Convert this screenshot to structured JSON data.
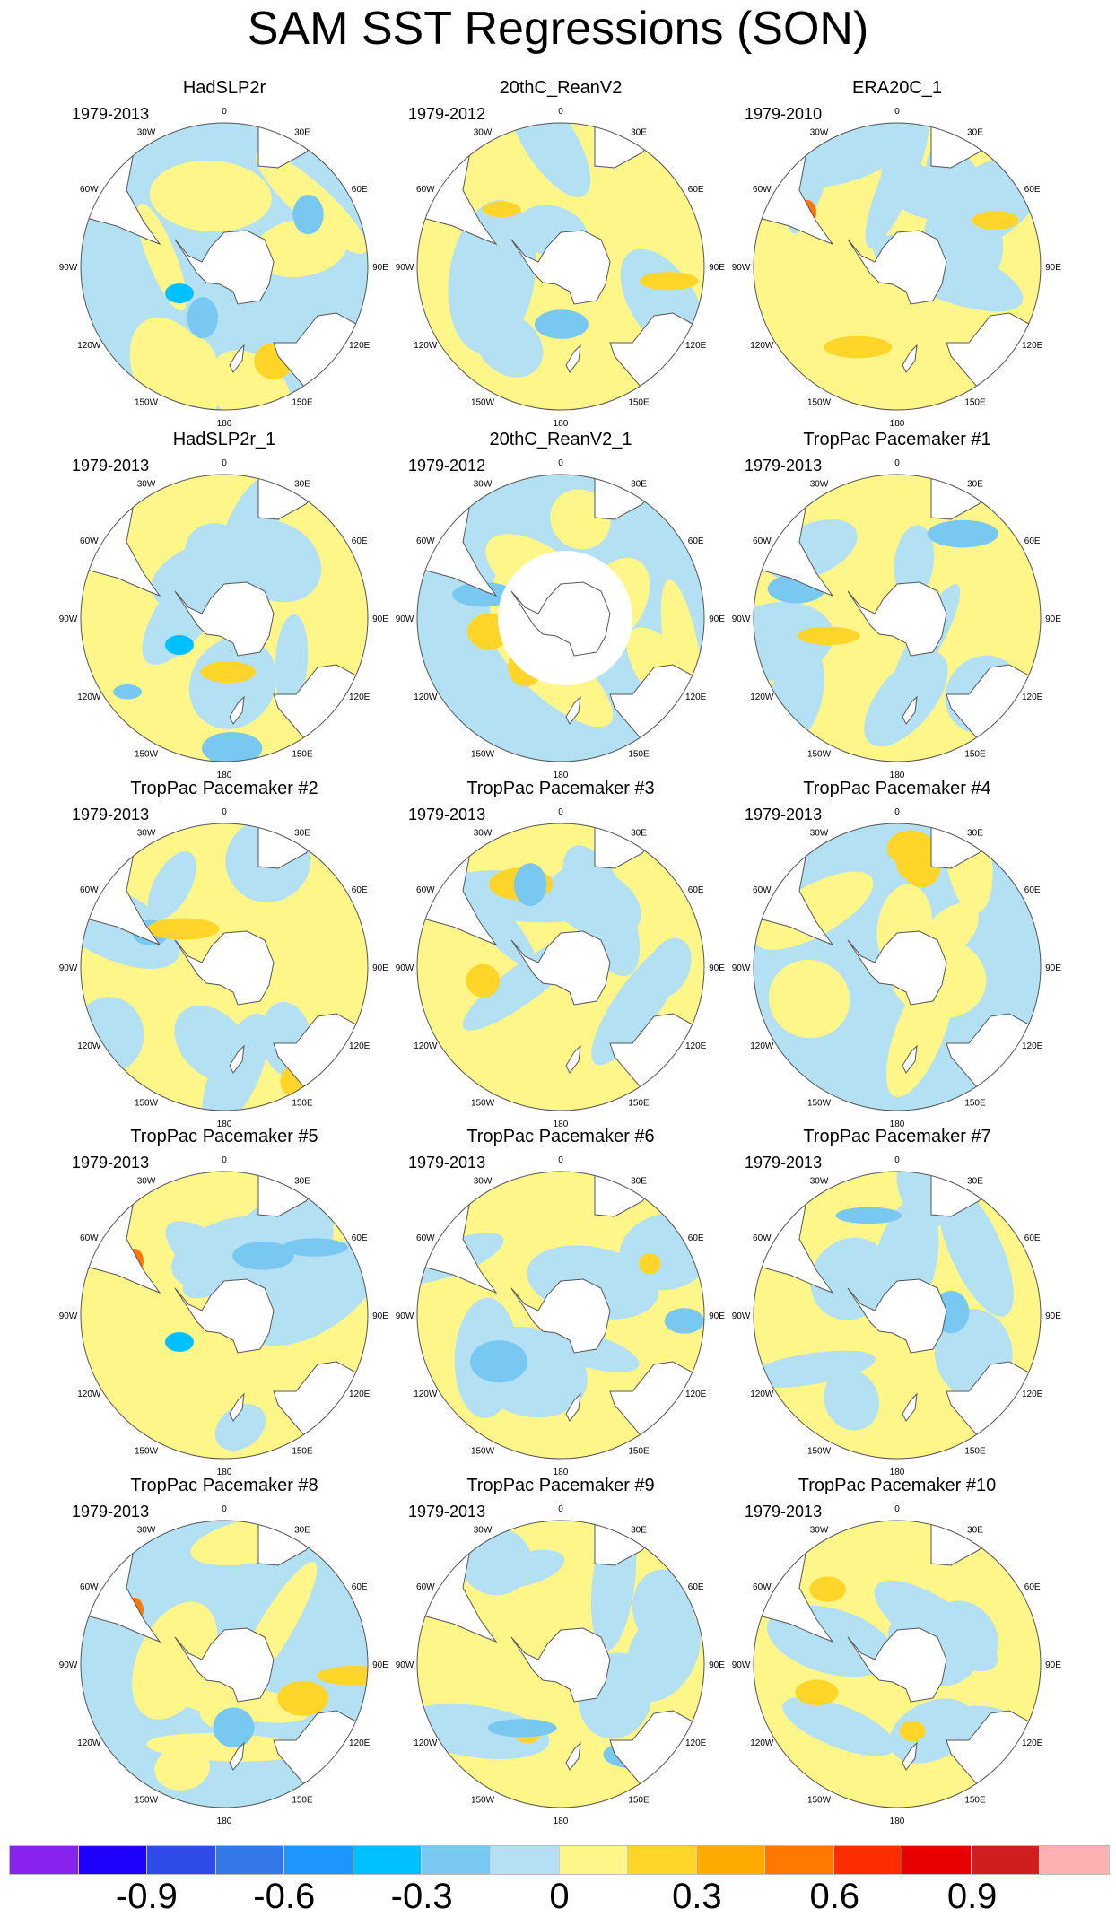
{
  "chart_data": {
    "type": "heatmap",
    "title": "SAM SST Regressions (SON)",
    "projection": "south polar stereographic",
    "longitude_labels": [
      "0",
      "30E",
      "60E",
      "90E",
      "120E",
      "150E",
      "180",
      "150W",
      "120W",
      "90W",
      "60W",
      "30W"
    ],
    "panels": [
      {
        "title": "HadSLP2r",
        "years": "1979-2013"
      },
      {
        "title": "20thC_ReanV2",
        "years": "1979-2012"
      },
      {
        "title": "ERA20C_1",
        "years": "1979-2010"
      },
      {
        "title": "HadSLP2r_1",
        "years": "1979-2013"
      },
      {
        "title": "20thC_ReanV2_1",
        "years": "1979-2012"
      },
      {
        "title": "TropPac Pacemaker #1",
        "years": "1979-2013"
      },
      {
        "title": "TropPac Pacemaker #2",
        "years": "1979-2013"
      },
      {
        "title": "TropPac Pacemaker #3",
        "years": "1979-2013"
      },
      {
        "title": "TropPac Pacemaker #4",
        "years": "1979-2013"
      },
      {
        "title": "TropPac Pacemaker #5",
        "years": "1979-2013"
      },
      {
        "title": "TropPac Pacemaker #6",
        "years": "1979-2013"
      },
      {
        "title": "TropPac Pacemaker #7",
        "years": "1979-2013"
      },
      {
        "title": "TropPac Pacemaker #8",
        "years": "1979-2013"
      },
      {
        "title": "TropPac Pacemaker #9",
        "years": "1979-2013"
      },
      {
        "title": "TropPac Pacemaker #10",
        "years": "1979-2013"
      }
    ],
    "colorbar": {
      "colors": [
        "#8a22ee",
        "#1e00ff",
        "#2d4ce8",
        "#3478e8",
        "#1e96ff",
        "#00c0ff",
        "#78c8f2",
        "#b4e0f4",
        "#fff68a",
        "#ffd52a",
        "#ffaa00",
        "#ff7800",
        "#ff2d00",
        "#e80000",
        "#d01e1e",
        "#ffb0b0"
      ],
      "levels": [
        -1.05,
        -0.9,
        -0.75,
        -0.6,
        -0.45,
        -0.3,
        -0.15,
        0,
        0.15,
        0.3,
        0.45,
        0.6,
        0.75,
        0.9,
        1.05
      ],
      "tick_labels": [
        "-0.9",
        "-0.6",
        "-0.3",
        "0",
        "0.3",
        "0.6",
        "0.9"
      ],
      "tick_values": [
        -0.9,
        -0.6,
        -0.3,
        0,
        0.3,
        0.6,
        0.9
      ]
    }
  }
}
